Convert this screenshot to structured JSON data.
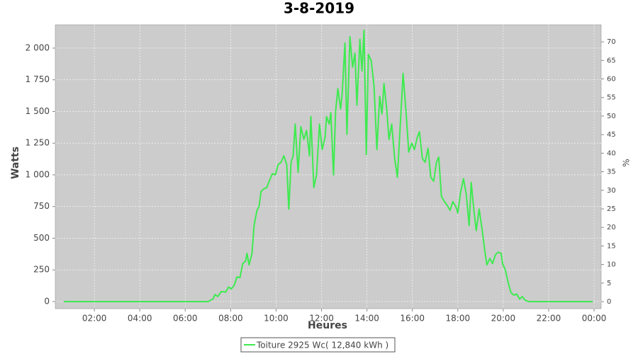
{
  "chart_data": {
    "type": "line",
    "title": "3-8-2019",
    "x_label": "Heures",
    "y_label": "Watts",
    "y2_label": "%",
    "x": [
      0.66,
      7.0,
      7.22,
      7.31,
      7.44,
      7.59,
      7.78,
      7.91,
      8.03,
      8.16,
      8.28,
      8.41,
      8.53,
      8.66,
      8.72,
      8.81,
      8.94,
      9.03,
      9.16,
      9.25,
      9.34,
      9.47,
      9.59,
      9.72,
      9.84,
      9.97,
      10.09,
      10.22,
      10.34,
      10.47,
      10.56,
      10.66,
      10.75,
      10.84,
      10.97,
      11.09,
      11.22,
      11.34,
      11.47,
      11.53,
      11.66,
      11.78,
      11.91,
      12.03,
      12.16,
      12.22,
      12.34,
      12.41,
      12.53,
      12.62,
      12.72,
      12.84,
      12.91,
      13.03,
      13.12,
      13.25,
      13.37,
      13.47,
      13.56,
      13.69,
      13.78,
      13.87,
      13.97,
      14.06,
      14.19,
      14.31,
      14.44,
      14.56,
      14.66,
      14.75,
      14.87,
      14.97,
      15.09,
      15.22,
      15.34,
      15.47,
      15.59,
      15.72,
      15.84,
      15.97,
      16.09,
      16.22,
      16.31,
      16.44,
      16.56,
      16.69,
      16.81,
      16.94,
      17.06,
      17.16,
      17.28,
      17.41,
      17.53,
      17.66,
      17.78,
      17.91,
      18.0,
      18.12,
      18.25,
      18.37,
      18.5,
      18.59,
      18.72,
      18.81,
      18.94,
      19.06,
      19.19,
      19.28,
      19.41,
      19.53,
      19.66,
      19.78,
      19.91,
      19.97,
      20.09,
      20.22,
      20.34,
      20.47,
      20.59,
      20.72,
      20.84,
      20.97,
      21.12,
      23.94
    ],
    "series": [
      {
        "name": "Toiture 2925 Wc( 12,840 kWh )",
        "color": "#3eea50",
        "values": [
          0,
          0,
          20,
          55,
          40,
          80,
          75,
          115,
          100,
          130,
          195,
          190,
          300,
          320,
          380,
          290,
          380,
          600,
          720,
          750,
          870,
          890,
          900,
          960,
          1010,
          1000,
          1080,
          1100,
          1150,
          1080,
          730,
          1100,
          1150,
          1400,
          1020,
          1380,
          1280,
          1350,
          1150,
          1460,
          900,
          1000,
          1400,
          1200,
          1300,
          1460,
          1400,
          1490,
          1000,
          1500,
          1680,
          1520,
          1640,
          2040,
          1320,
          2090,
          1850,
          1960,
          1550,
          2070,
          1820,
          2140,
          1160,
          1950,
          1900,
          1700,
          1200,
          1620,
          1480,
          1720,
          1520,
          1280,
          1400,
          1130,
          980,
          1400,
          1800,
          1500,
          1180,
          1250,
          1200,
          1300,
          1340,
          1130,
          1100,
          1210,
          980,
          950,
          1100,
          1140,
          830,
          790,
          760,
          720,
          790,
          750,
          700,
          860,
          970,
          850,
          600,
          940,
          700,
          560,
          730,
          580,
          400,
          290,
          340,
          300,
          370,
          390,
          380,
          300,
          250,
          150,
          70,
          50,
          60,
          20,
          40,
          10,
          0,
          0
        ]
      }
    ],
    "xlim": [
      0.28,
      24.31
    ],
    "xticks": [
      {
        "value": 2,
        "label": "02:00"
      },
      {
        "value": 4,
        "label": "04:00"
      },
      {
        "value": 6,
        "label": "06:00"
      },
      {
        "value": 8,
        "label": "08:00"
      },
      {
        "value": 10,
        "label": "10:00"
      },
      {
        "value": 12,
        "label": "12:00"
      },
      {
        "value": 14,
        "label": "14:00"
      },
      {
        "value": 16,
        "label": "16:00"
      },
      {
        "value": 18,
        "label": "18:00"
      },
      {
        "value": 20,
        "label": "20:00"
      },
      {
        "value": 22,
        "label": "22:00"
      },
      {
        "value": 24,
        "label": "00:00"
      }
    ],
    "ylim": [
      -56,
      2184
    ],
    "yticks": [
      0,
      250,
      500,
      750,
      {
        "value": 1000,
        "label": "1 000"
      },
      {
        "value": 1250,
        "label": "1 250"
      },
      {
        "value": 1500,
        "label": "1 500"
      },
      {
        "value": 1750,
        "label": "1 750"
      },
      {
        "value": 2000,
        "label": "2 000"
      }
    ],
    "y2lim": [
      -1.9,
      74.6
    ],
    "y2ticks": [
      0,
      5,
      10,
      15,
      20,
      25,
      30,
      35,
      40,
      45,
      50,
      55,
      60,
      65,
      70
    ],
    "grid": true
  }
}
